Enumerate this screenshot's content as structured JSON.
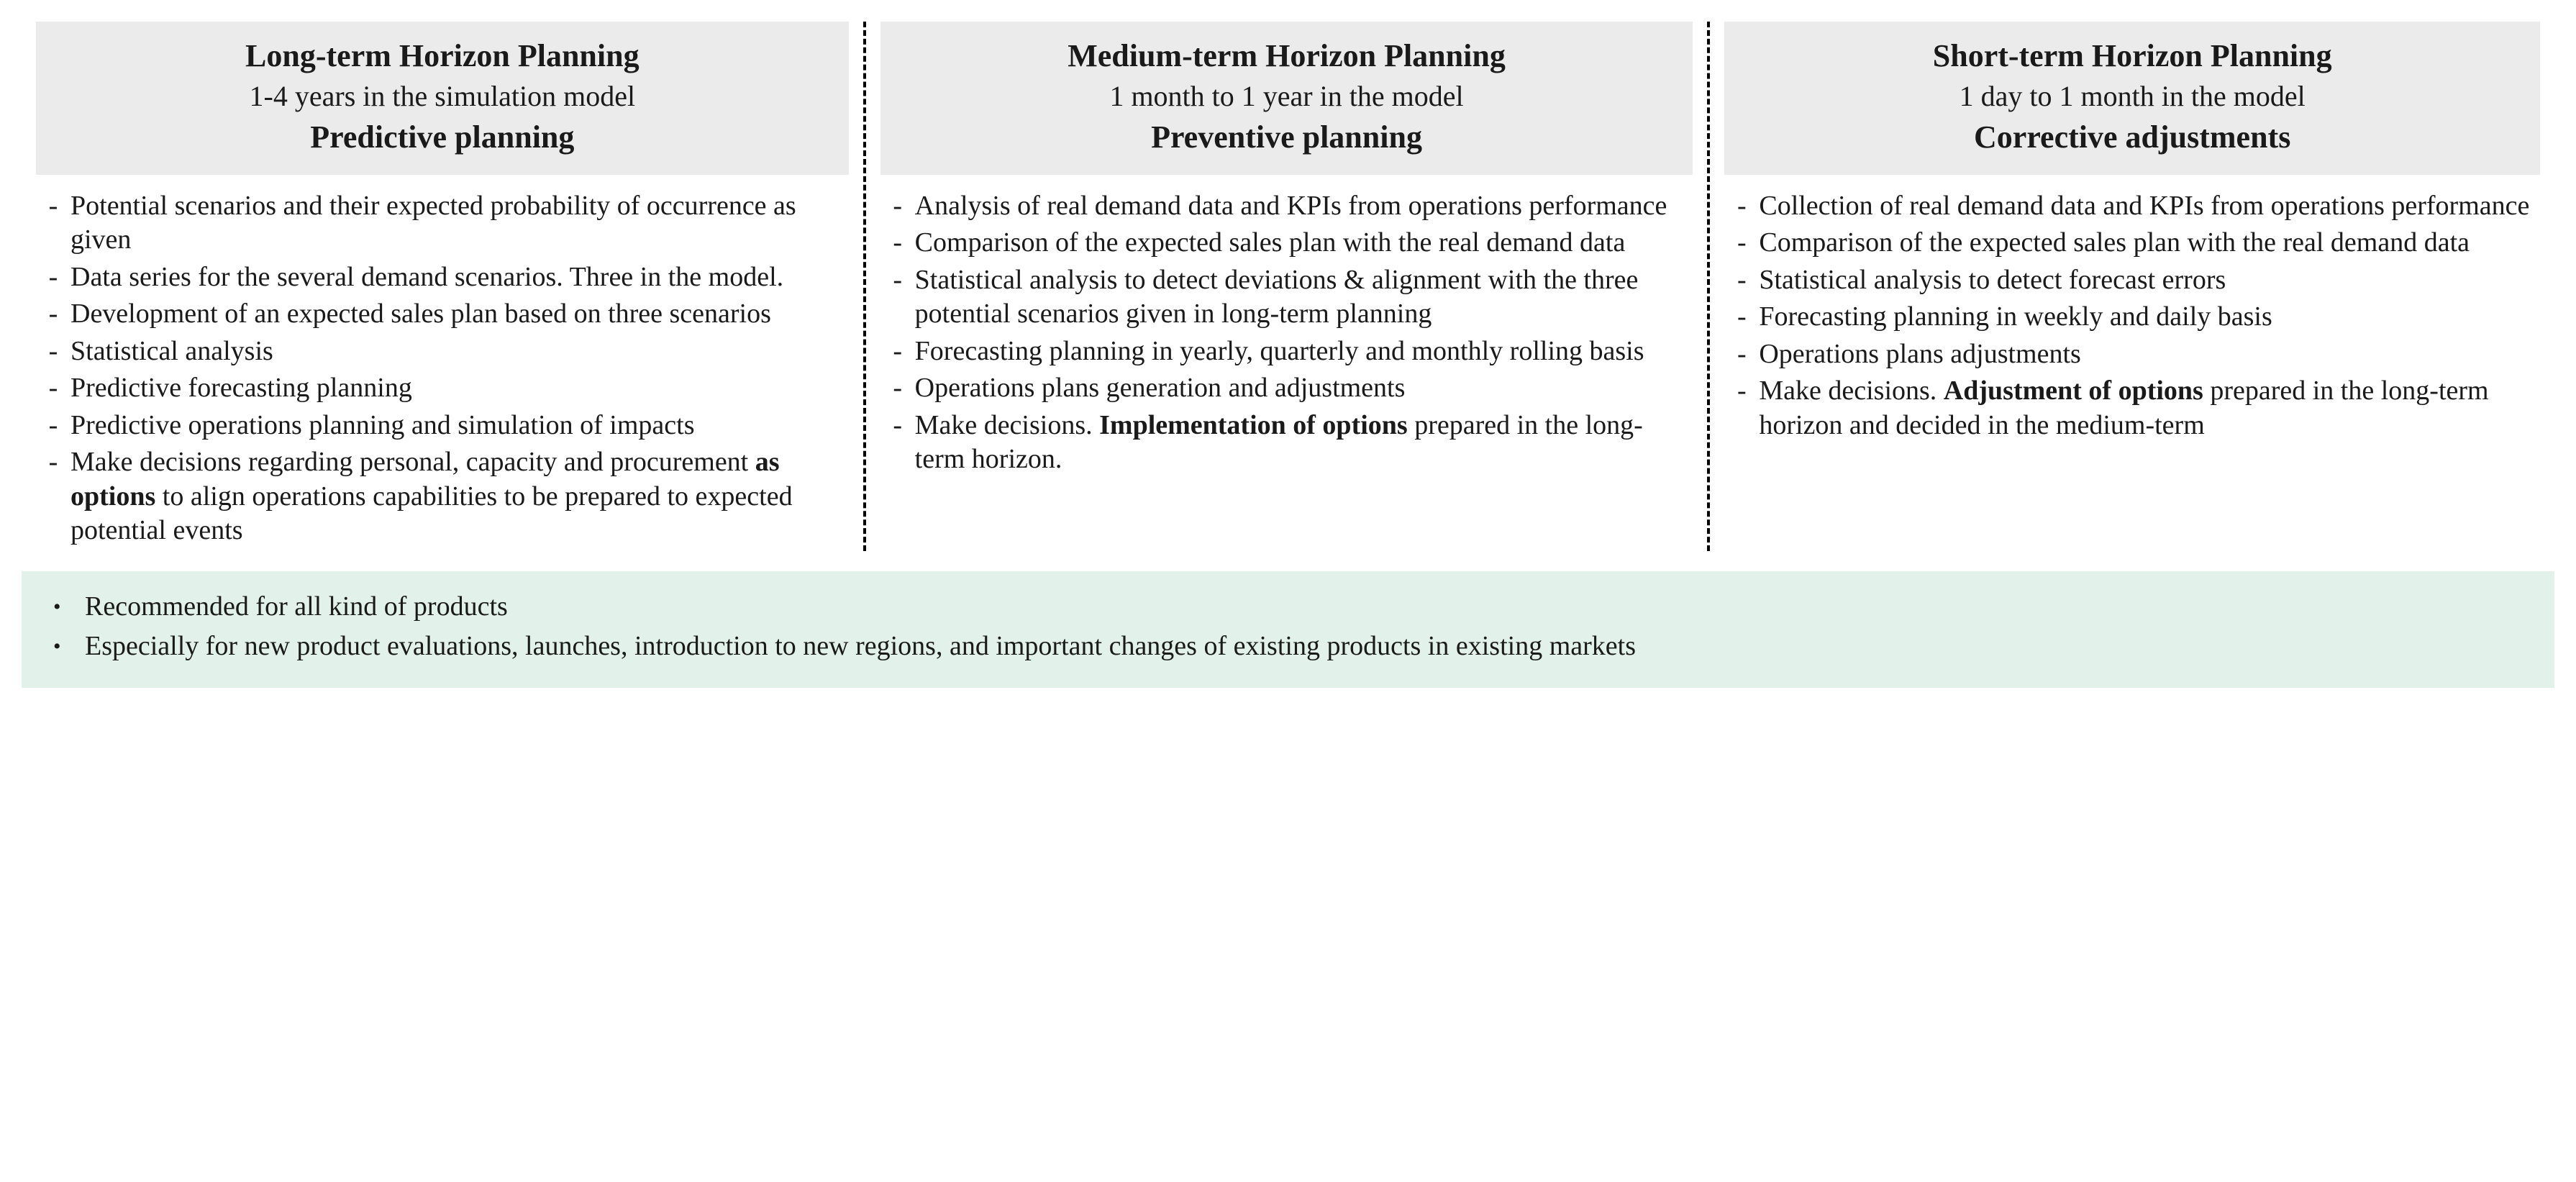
{
  "colors": {
    "header_bg": "#ebebeb",
    "footer_bg": "#e2f1ea",
    "text": "#1a1a1a",
    "separator": "#000000"
  },
  "typography": {
    "family": "Palatino Linotype / Book Antiqua / serif",
    "title_size_pt": 44,
    "sub_size_pt": 40,
    "body_size_pt": 38
  },
  "columns": [
    {
      "title": "Long-term Horizon Planning",
      "sub": "1-4 years in the simulation model",
      "type": "Predictive planning",
      "items": [
        [
          {
            "t": "Potential scenarios and their expected probability of occurrence as given",
            "b": false
          }
        ],
        [
          {
            "t": "Data series for the several demand scenarios. Three in the model.",
            "b": false
          }
        ],
        [
          {
            "t": "Development of an expected sales plan based on three scenarios",
            "b": false
          }
        ],
        [
          {
            "t": "Statistical analysis",
            "b": false
          }
        ],
        [
          {
            "t": "Predictive forecasting planning",
            "b": false
          }
        ],
        [
          {
            "t": "Predictive operations planning and simulation of impacts",
            "b": false
          }
        ],
        [
          {
            "t": "Make decisions regarding personal, capacity and procurement ",
            "b": false
          },
          {
            "t": "as options",
            "b": true
          },
          {
            "t": " to align operations capabilities to be prepared to expected potential events",
            "b": false
          }
        ]
      ]
    },
    {
      "title": "Medium-term Horizon Planning",
      "sub": "1 month to 1 year in the model",
      "type": "Preventive planning",
      "items": [
        [
          {
            "t": "Analysis of real demand data and KPIs from operations performance",
            "b": false
          }
        ],
        [
          {
            "t": "Comparison of the expected sales plan with the real demand data",
            "b": false
          }
        ],
        [
          {
            "t": "Statistical analysis to detect deviations & alignment with the three potential scenarios given in long-term planning",
            "b": false
          }
        ],
        [
          {
            "t": "Forecasting planning in yearly, quarterly and monthly rolling basis",
            "b": false
          }
        ],
        [
          {
            "t": "Operations plans generation and adjustments",
            "b": false
          }
        ],
        [
          {
            "t": "Make decisions. ",
            "b": false
          },
          {
            "t": "Implementation of options",
            "b": true
          },
          {
            "t": " prepared in the long-term horizon.",
            "b": false
          }
        ]
      ]
    },
    {
      "title": "Short-term Horizon Planning",
      "sub": "1 day to 1 month in the model",
      "type": "Corrective adjustments",
      "items": [
        [
          {
            "t": "Collection of real demand data and KPIs from operations performance",
            "b": false
          }
        ],
        [
          {
            "t": "Comparison of the expected sales plan with the real demand data",
            "b": false
          }
        ],
        [
          {
            "t": "Statistical analysis to detect forecast errors",
            "b": false
          }
        ],
        [
          {
            "t": "Forecasting planning in weekly and daily basis",
            "b": false
          }
        ],
        [
          {
            "t": "Operations plans adjustments",
            "b": false
          }
        ],
        [
          {
            "t": "Make decisions. ",
            "b": false
          },
          {
            "t": "Adjustment of options",
            "b": true
          },
          {
            "t": " prepared in the long-term horizon and decided in the medium-term",
            "b": false
          }
        ]
      ]
    }
  ],
  "footer": [
    "Recommended for all kind of products",
    "Especially for new product evaluations, launches, introduction to new regions, and important changes of existing products in existing markets"
  ]
}
